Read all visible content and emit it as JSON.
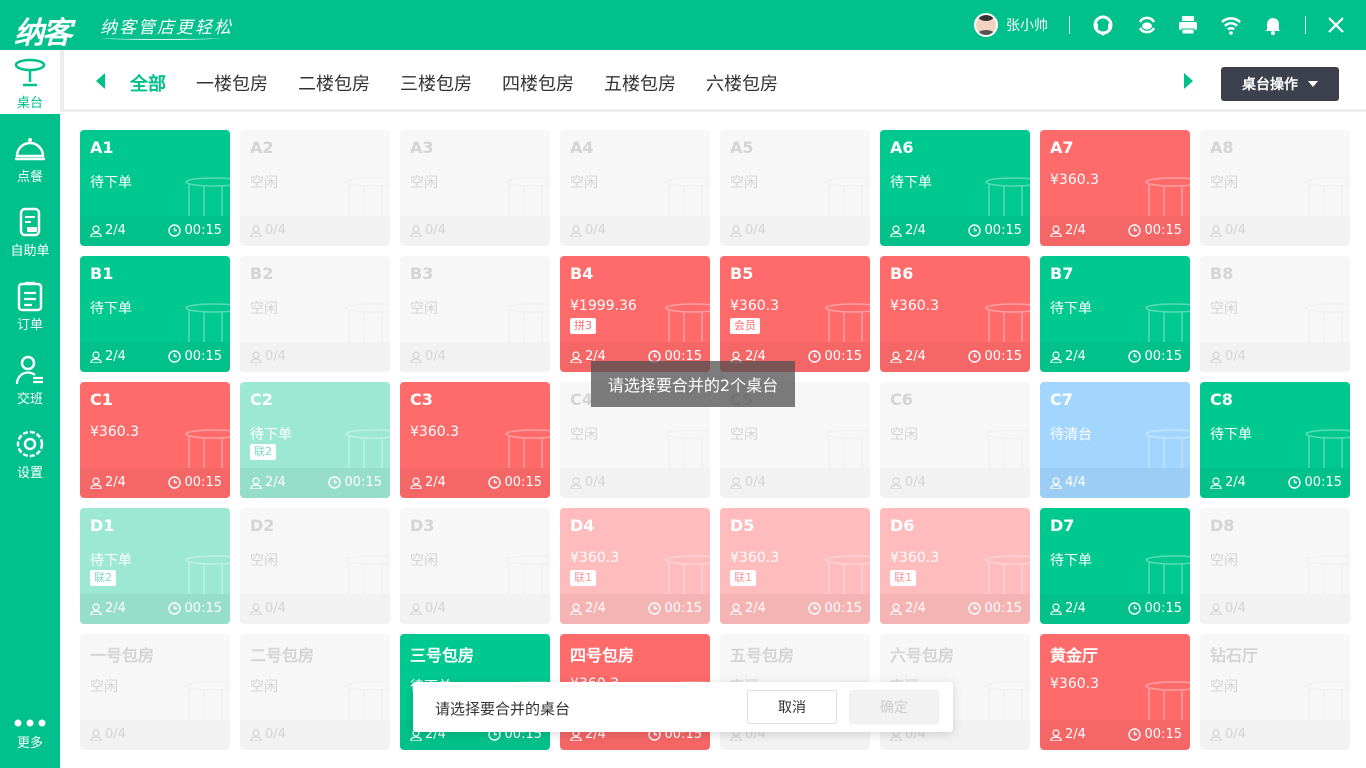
{
  "header": {
    "logo": "纳客",
    "slogan": "纳客管店更轻松",
    "user_name": "张小帅",
    "icons": [
      "headset-icon",
      "cloud-sync-icon",
      "printer-icon",
      "wifi-icon",
      "bell-icon",
      "close-icon"
    ]
  },
  "sidebar": {
    "items": [
      {
        "label": "桌台",
        "icon": "table-icon",
        "active": true
      },
      {
        "label": "点餐",
        "icon": "cloche-icon"
      },
      {
        "label": "自助单",
        "icon": "self-order-icon"
      },
      {
        "label": "订单",
        "icon": "clipboard-icon"
      },
      {
        "label": "交班",
        "icon": "handover-icon"
      },
      {
        "label": "设置",
        "icon": "gear-icon"
      }
    ],
    "more": "更多"
  },
  "tabs": [
    {
      "label": "全部",
      "active": true
    },
    {
      "label": "一楼包房"
    },
    {
      "label": "二楼包房"
    },
    {
      "label": "三楼包房"
    },
    {
      "label": "四楼包房"
    },
    {
      "label": "五楼包房"
    },
    {
      "label": "六楼包房"
    }
  ],
  "table_ops": "桌台操作",
  "colors": {
    "brand": "#00c08b",
    "occupied_green": "#00c98f",
    "billed_red": "#ff6b6b",
    "linked_green": "#9de8d3",
    "linked_red": "#ffbcbc",
    "cleaning_blue": "#a3d6ff",
    "idle": "#f7f7f7"
  },
  "tables": [
    {
      "name": "A1",
      "state": "green",
      "status": "待下单",
      "guests": "2/4",
      "time": "00:15"
    },
    {
      "name": "A2",
      "state": "idle",
      "status": "空闲",
      "guests": "0/4"
    },
    {
      "name": "A3",
      "state": "idle",
      "status": "空闲",
      "guests": "0/4"
    },
    {
      "name": "A4",
      "state": "idle",
      "status": "空闲",
      "guests": "0/4"
    },
    {
      "name": "A5",
      "state": "idle",
      "status": "空闲",
      "guests": "0/4"
    },
    {
      "name": "A6",
      "state": "green",
      "status": "待下单",
      "guests": "2/4",
      "time": "00:15"
    },
    {
      "name": "A7",
      "state": "red",
      "status": "¥360.3",
      "guests": "2/4",
      "time": "00:15"
    },
    {
      "name": "A8",
      "state": "idle",
      "status": "空闲",
      "guests": "0/4"
    },
    {
      "name": "B1",
      "state": "green",
      "status": "待下单",
      "guests": "2/4",
      "time": "00:15"
    },
    {
      "name": "B2",
      "state": "idle",
      "status": "空闲",
      "guests": "0/4"
    },
    {
      "name": "B3",
      "state": "idle",
      "status": "空闲",
      "guests": "0/4"
    },
    {
      "name": "B4",
      "state": "red",
      "status": "¥1999.36",
      "tag": "拼3",
      "guests": "2/4",
      "time": "00:15"
    },
    {
      "name": "B5",
      "state": "red",
      "status": "¥360.3",
      "tag": "会员",
      "guests": "2/4",
      "time": "00:15"
    },
    {
      "name": "B6",
      "state": "red",
      "status": "¥360.3",
      "guests": "2/4",
      "time": "00:15"
    },
    {
      "name": "B7",
      "state": "green",
      "status": "待下单",
      "guests": "2/4",
      "time": "00:15"
    },
    {
      "name": "B8",
      "state": "idle",
      "status": "空闲",
      "guests": "0/4"
    },
    {
      "name": "C1",
      "state": "red",
      "status": "¥360.3",
      "guests": "2/4",
      "time": "00:15"
    },
    {
      "name": "C2",
      "state": "lgreen",
      "status": "待下单",
      "tag": "联2",
      "guests": "2/4",
      "time": "00:15"
    },
    {
      "name": "C3",
      "state": "red",
      "status": "¥360.3",
      "guests": "2/4",
      "time": "00:15"
    },
    {
      "name": "C4",
      "state": "idle",
      "status": "空闲",
      "guests": "0/4"
    },
    {
      "name": "C5",
      "state": "idle",
      "status": "空闲",
      "guests": "0/4"
    },
    {
      "name": "C6",
      "state": "idle",
      "status": "空闲",
      "guests": "0/4"
    },
    {
      "name": "C7",
      "state": "blue",
      "status": "待清台",
      "guests": "4/4"
    },
    {
      "name": "C8",
      "state": "green",
      "status": "待下单",
      "guests": "2/4",
      "time": "00:15"
    },
    {
      "name": "D1",
      "state": "lgreen",
      "status": "待下单",
      "tag": "联2",
      "guests": "2/4",
      "time": "00:15"
    },
    {
      "name": "D2",
      "state": "idle",
      "status": "空闲",
      "guests": "0/4"
    },
    {
      "name": "D3",
      "state": "idle",
      "status": "空闲",
      "guests": "0/4"
    },
    {
      "name": "D4",
      "state": "lred",
      "status": "¥360.3",
      "tag": "联1",
      "guests": "2/4",
      "time": "00:15"
    },
    {
      "name": "D5",
      "state": "lred",
      "status": "¥360.3",
      "tag": "联1",
      "guests": "2/4",
      "time": "00:15"
    },
    {
      "name": "D6",
      "state": "lred",
      "status": "¥360.3",
      "tag": "联1",
      "guests": "2/4",
      "time": "00:15"
    },
    {
      "name": "D7",
      "state": "green",
      "status": "待下单",
      "guests": "2/4",
      "time": "00:15"
    },
    {
      "name": "D8",
      "state": "idle",
      "status": "空闲",
      "guests": "0/4"
    },
    {
      "name": "一号包房",
      "state": "idle",
      "status": "空闲",
      "guests": "0/4"
    },
    {
      "name": "二号包房",
      "state": "idle",
      "status": "空闲",
      "guests": "0/4"
    },
    {
      "name": "三号包房",
      "state": "green",
      "status": "待下单",
      "guests": "2/4",
      "time": "00:15"
    },
    {
      "name": "四号包房",
      "state": "red",
      "status": "¥360.3",
      "guests": "2/4",
      "time": "00:15"
    },
    {
      "name": "五号包房",
      "state": "idle",
      "status": "空闲",
      "guests": "0/4"
    },
    {
      "name": "六号包房",
      "state": "idle",
      "status": "空闲",
      "guests": "0/4"
    },
    {
      "name": "黄金厅",
      "state": "red",
      "status": "¥360.3",
      "guests": "2/4",
      "time": "00:15"
    },
    {
      "name": "钻石厅",
      "state": "idle",
      "status": "空闲",
      "guests": "0/4"
    }
  ],
  "toast": "请选择要合并的2个桌台",
  "merge_bar": {
    "message": "请选择要合并的桌台",
    "cancel": "取消",
    "confirm": "确定"
  }
}
